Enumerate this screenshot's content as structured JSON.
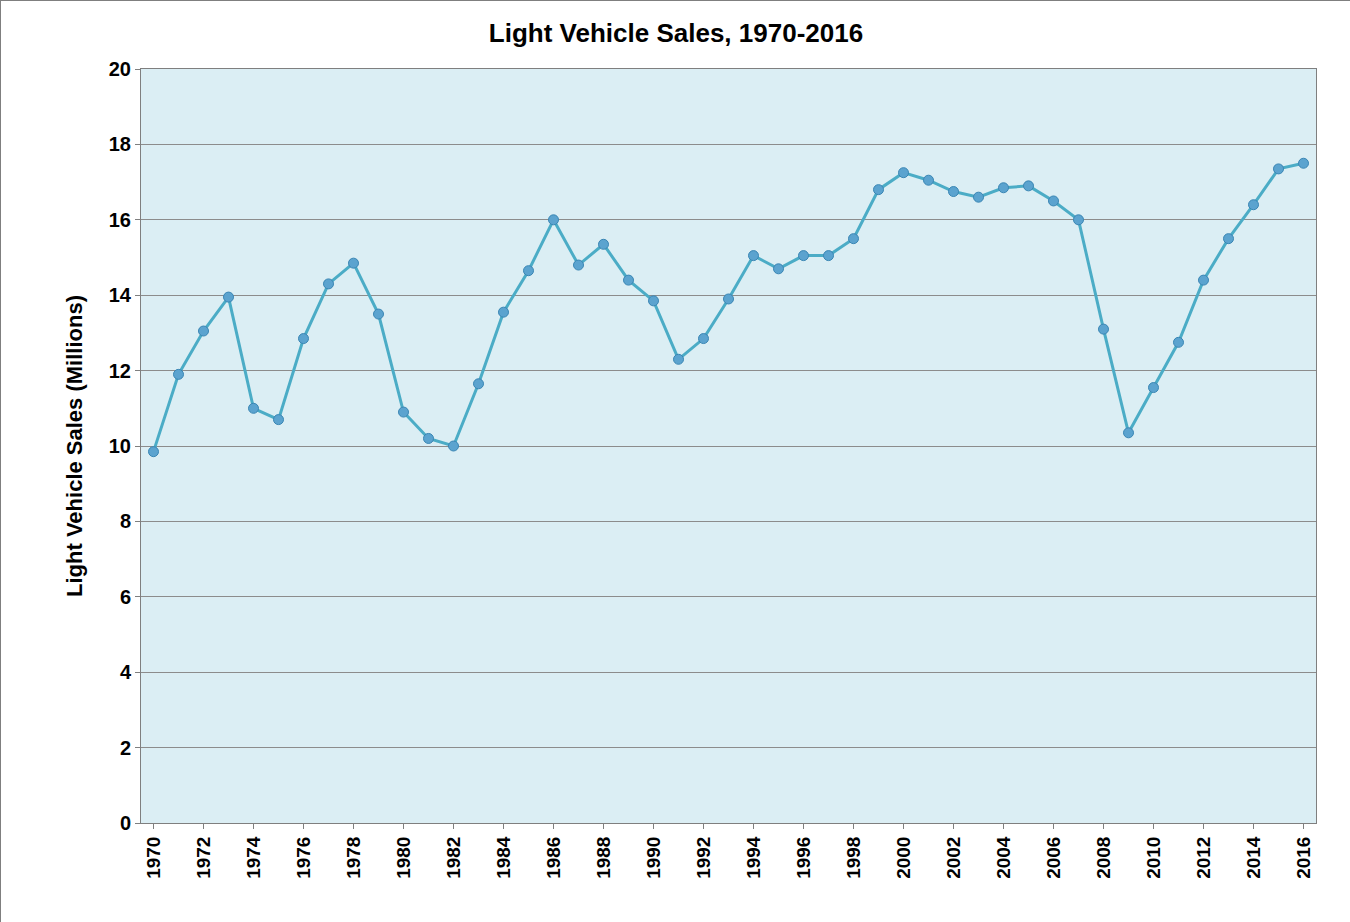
{
  "chart_data": {
    "type": "line",
    "title": "Light Vehicle Sales, 1970-2016",
    "y_label": "Light Vehicle Sales (Millions)",
    "x": [
      1970,
      1971,
      1972,
      1973,
      1974,
      1975,
      1976,
      1977,
      1978,
      1979,
      1980,
      1981,
      1982,
      1983,
      1984,
      1985,
      1986,
      1987,
      1988,
      1989,
      1990,
      1991,
      1992,
      1993,
      1994,
      1995,
      1996,
      1997,
      1998,
      1999,
      2000,
      2001,
      2002,
      2003,
      2004,
      2005,
      2006,
      2007,
      2008,
      2009,
      2010,
      2011,
      2012,
      2013,
      2014,
      2015,
      2016
    ],
    "values": [
      9.85,
      11.9,
      13.05,
      13.95,
      11.0,
      10.7,
      12.85,
      14.3,
      14.85,
      13.5,
      10.9,
      10.2,
      10.0,
      11.65,
      13.55,
      14.65,
      16.0,
      14.8,
      15.35,
      14.4,
      13.85,
      12.3,
      12.85,
      13.9,
      15.05,
      14.7,
      15.05,
      15.05,
      15.5,
      16.8,
      17.25,
      17.05,
      16.75,
      16.6,
      16.85,
      16.9,
      16.5,
      16.0,
      13.1,
      10.35,
      11.55,
      12.75,
      14.4,
      15.5,
      16.4,
      17.35,
      17.5
    ],
    "color": "#4bacc6",
    "marker": "circle",
    "line_style": "solid",
    "xlim": [
      1969.5,
      2016.5
    ],
    "xticks": [
      1970,
      1972,
      1974,
      1976,
      1978,
      1980,
      1982,
      1984,
      1986,
      1988,
      1990,
      1992,
      1994,
      1996,
      1998,
      2000,
      2002,
      2004,
      2006,
      2008,
      2010,
      2012,
      2014,
      2016
    ],
    "ylim": [
      0,
      20
    ],
    "yticks": [
      0,
      2,
      4,
      6,
      8,
      10,
      12,
      14,
      16,
      18,
      20
    ],
    "grid": true
  }
}
